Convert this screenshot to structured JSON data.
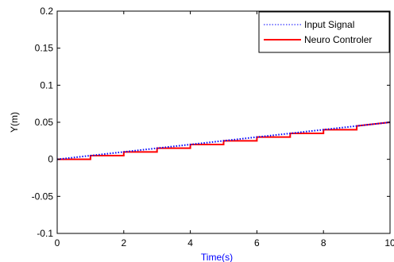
{
  "chart_data": {
    "type": "line",
    "xlabel": "Time(s)",
    "ylabel": "Y(m)",
    "xlim": [
      0,
      10
    ],
    "ylim": [
      -0.1,
      0.2
    ],
    "x_ticks": [
      "0",
      "2",
      "4",
      "6",
      "8",
      "10"
    ],
    "y_ticks": [
      "-0.1",
      "-0.05",
      "0",
      "0.05",
      "0.1",
      "0.15",
      "0.2"
    ],
    "x_tick_values": [
      0,
      2,
      4,
      6,
      8,
      10
    ],
    "y_tick_values": [
      -0.1,
      -0.05,
      0,
      0.05,
      0.1,
      0.15,
      0.2
    ],
    "grid": false,
    "legend_position": "top-right",
    "series": [
      {
        "name": "Input Signal",
        "color": "#0000ff",
        "style": "dotted",
        "x": [
          0,
          10
        ],
        "y": [
          0,
          0.05
        ]
      },
      {
        "name": "Neuro Controler",
        "color": "#ff0000",
        "style": "solid-step",
        "x": [
          0,
          1,
          1,
          2,
          2,
          3,
          3,
          4,
          4,
          5,
          5,
          6,
          6,
          7,
          7,
          8,
          8,
          9,
          9,
          10
        ],
        "y": [
          0,
          0,
          0.005,
          0.005,
          0.01,
          0.01,
          0.015,
          0.015,
          0.02,
          0.02,
          0.025,
          0.025,
          0.03,
          0.03,
          0.035,
          0.035,
          0.04,
          0.04,
          0.045,
          0.05
        ]
      }
    ]
  }
}
